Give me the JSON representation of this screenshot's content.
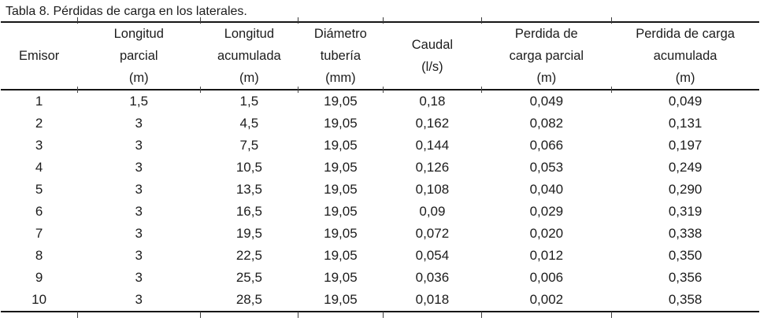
{
  "title": "Tabla 8. Pérdidas de carga en los laterales.",
  "table": {
    "headers": [
      "Emisor",
      "Longitud\nparcial\n(m)",
      "Longitud\nacumulada\n(m)",
      "Diámetro\ntubería\n(mm)",
      "Caudal\n(l/s)",
      "Perdida de\ncarga parcial\n(m)",
      "Perdida de carga\nacumulada\n(m)"
    ],
    "rows": [
      [
        "1",
        "1,5",
        "1,5",
        "19,05",
        "0,18",
        "0,049",
        "0,049"
      ],
      [
        "2",
        "3",
        "4,5",
        "19,05",
        "0,162",
        "0,082",
        "0,131"
      ],
      [
        "3",
        "3",
        "7,5",
        "19,05",
        "0,144",
        "0,066",
        "0,197"
      ],
      [
        "4",
        "3",
        "10,5",
        "19,05",
        "0,126",
        "0,053",
        "0,249"
      ],
      [
        "5",
        "3",
        "13,5",
        "19,05",
        "0,108",
        "0,040",
        "0,290"
      ],
      [
        "6",
        "3",
        "16,5",
        "19,05",
        "0,09",
        "0,029",
        "0,319"
      ],
      [
        "7",
        "3",
        "19,5",
        "19,05",
        "0,072",
        "0,020",
        "0,338"
      ],
      [
        "8",
        "3",
        "22,5",
        "19,05",
        "0,054",
        "0,012",
        "0,350"
      ],
      [
        "9",
        "3",
        "25,5",
        "19,05",
        "0,036",
        "0,006",
        "0,356"
      ],
      [
        "10",
        "3",
        "28,5",
        "19,05",
        "0,018",
        "0,002",
        "0,358"
      ]
    ]
  },
  "colors": {
    "text": "#1c1c1c",
    "rule": "#161616",
    "background": "#ffffff"
  }
}
